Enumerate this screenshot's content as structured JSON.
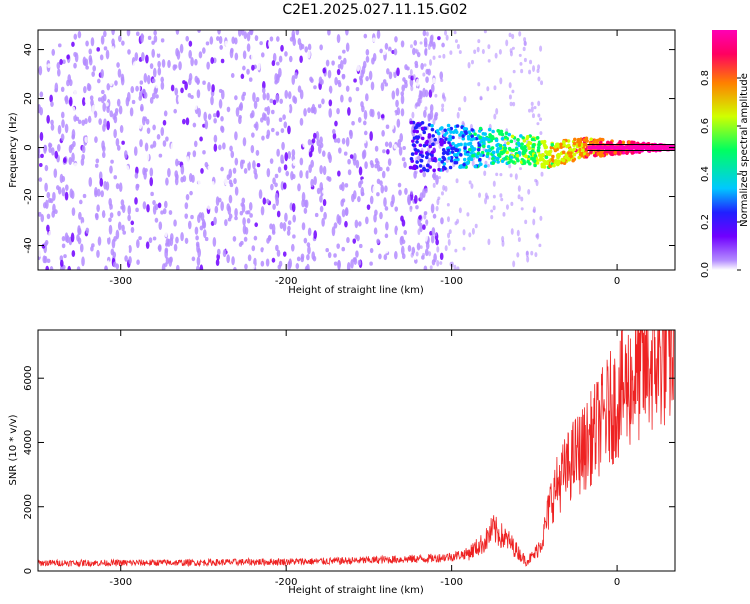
{
  "title": "C2E1.2025.027.11.15.G02",
  "chart_data": [
    {
      "type": "heatmap",
      "xlabel": "Height of straight line (km)",
      "ylabel": "Frequency (Hz)",
      "xlim": [
        -350,
        35
      ],
      "ylim": [
        -50,
        48
      ],
      "x_ticks": [
        -300,
        -200,
        -100,
        0
      ],
      "y_ticks": [
        -40,
        -20,
        0,
        20,
        40
      ],
      "colorbar": {
        "label": "Normalized spectral amplitude",
        "range": [
          0,
          1
        ],
        "ticks": [
          0.0,
          0.2,
          0.4,
          0.6,
          0.8
        ],
        "colors": [
          "#ffffff",
          "#b48cff",
          "#7000ff",
          "#2020ff",
          "#00c8ff",
          "#00ff60",
          "#d0ff00",
          "#ff8000",
          "#ff0060",
          "#ff00b4"
        ]
      },
      "features": {
        "carrier_frequency_hz": 0,
        "carrier_strong_from_km": -30,
        "carrier_broadening_from_km": -125,
        "noise_region_km": [
          -350,
          -125
        ]
      }
    },
    {
      "type": "line",
      "xlabel": "Height of straight line (km)",
      "ylabel": "SNR (10 * v/v)",
      "xlim": [
        -350,
        35
      ],
      "ylim": [
        0,
        7500
      ],
      "x_ticks": [
        -300,
        -200,
        -100,
        0
      ],
      "y_ticks": [
        0,
        2000,
        4000,
        6000
      ],
      "line_color": "#ee2222",
      "series": [
        {
          "x": [
            -350,
            -320,
            -300,
            -280,
            -260,
            -240,
            -220,
            -200,
            -180,
            -160,
            -140,
            -120,
            -110,
            -100,
            -90,
            -80,
            -75,
            -70,
            -65,
            -60,
            -55,
            -50,
            -45,
            -40,
            -35,
            -30,
            -25,
            -20,
            -15,
            -10,
            -5,
            0,
            5,
            10,
            15,
            20,
            25,
            30,
            35
          ],
          "y": [
            250,
            250,
            250,
            260,
            260,
            270,
            280,
            290,
            300,
            320,
            350,
            380,
            400,
            450,
            550,
            900,
            1300,
            1100,
            900,
            600,
            300,
            500,
            1000,
            2200,
            2800,
            3200,
            3600,
            3800,
            4200,
            4600,
            5000,
            5300,
            5700,
            6000,
            6200,
            6400,
            6600,
            6800,
            6900
          ]
        }
      ]
    }
  ]
}
